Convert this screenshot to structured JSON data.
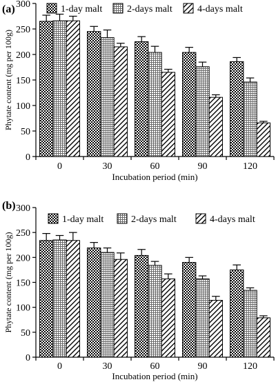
{
  "chart_data": [
    {
      "type": "bar",
      "panel_label": "(a)",
      "categories": [
        "0",
        "30",
        "60",
        "90",
        "120"
      ],
      "series": [
        {
          "name": "1-day malt",
          "values": [
            265,
            245,
            225,
            204,
            186
          ],
          "errors": [
            12,
            10,
            10,
            10,
            8
          ],
          "pattern": "dots"
        },
        {
          "name": "2-days malt",
          "values": [
            266,
            233,
            204,
            176,
            146
          ],
          "errors": [
            13,
            15,
            12,
            9,
            8
          ],
          "pattern": "grid"
        },
        {
          "name": "4-days malt",
          "values": [
            266,
            215,
            165,
            116,
            66
          ],
          "errors": [
            9,
            7,
            6,
            5,
            3
          ],
          "pattern": "hatch"
        }
      ],
      "xlabel": "Incubation period (min)",
      "ylabel": "Phytate content (mg per 100g)",
      "ylim": [
        0,
        300
      ],
      "yticks": [
        0,
        50,
        100,
        150,
        200,
        250,
        300
      ],
      "legend": "top"
    },
    {
      "type": "bar",
      "panel_label": "(b)",
      "categories": [
        "0",
        "30",
        "60",
        "90",
        "120"
      ],
      "series": [
        {
          "name": "1-day malt",
          "values": [
            234,
            219,
            204,
            190,
            175
          ],
          "errors": [
            14,
            11,
            12,
            10,
            10
          ],
          "pattern": "dots"
        },
        {
          "name": "2-days malt",
          "values": [
            235,
            210,
            184,
            157,
            134
          ],
          "errors": [
            9,
            9,
            8,
            6,
            5
          ],
          "pattern": "grid"
        },
        {
          "name": "4-days malt",
          "values": [
            234,
            196,
            157,
            114,
            79
          ],
          "errors": [
            16,
            13,
            10,
            8,
            4
          ],
          "pattern": "hatch"
        }
      ],
      "xlabel": "Incubation period (min)",
      "ylabel": "Phytate content (mg per 100g)",
      "ylim": [
        0,
        300
      ],
      "yticks": [
        0,
        50,
        100,
        150,
        200,
        250,
        300
      ],
      "legend": "top"
    }
  ]
}
